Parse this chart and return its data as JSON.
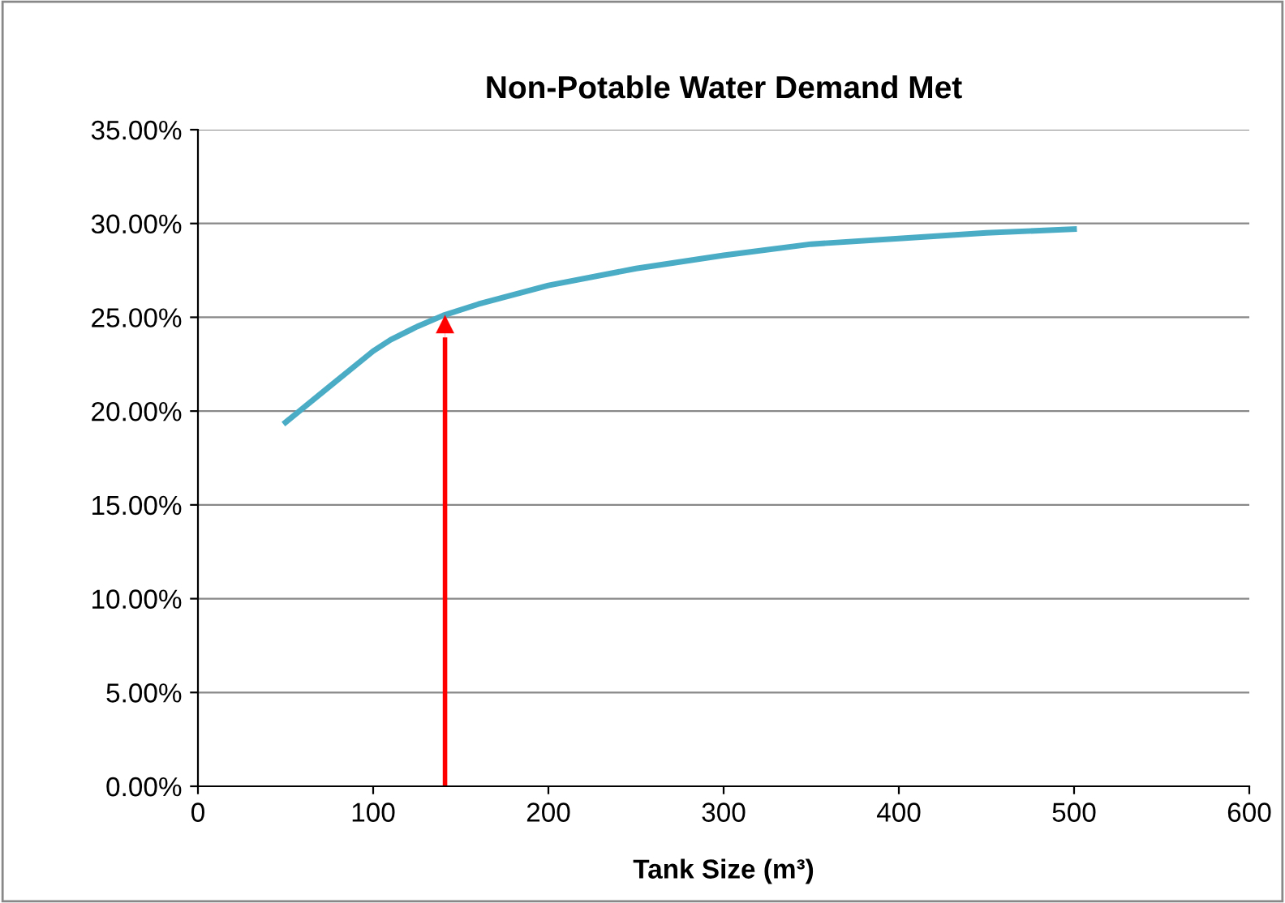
{
  "chart_data": {
    "type": "line",
    "title": "Non-Potable Water Demand Met",
    "xlabel": "Tank Size (m³)",
    "x": [
      50,
      75,
      100,
      110,
      125,
      140,
      160,
      200,
      250,
      300,
      350,
      400,
      450,
      500
    ],
    "series": [
      {
        "color": "#4bacc6",
        "values": [
          19.4,
          21.3,
          23.2,
          23.8,
          24.5,
          25.1,
          25.7,
          26.7,
          27.6,
          28.3,
          28.9,
          29.2,
          29.5,
          29.7
        ]
      }
    ],
    "xlim": [
      0,
      600
    ],
    "xticks": [
      0,
      100,
      200,
      300,
      400,
      500,
      600
    ],
    "ylim": [
      0,
      35
    ],
    "yticks": [
      {
        "value": 0,
        "label": "0.00%"
      },
      {
        "value": 5,
        "label": "5.00%"
      },
      {
        "value": 10,
        "label": "10.00%"
      },
      {
        "value": 15,
        "label": "15.00%"
      },
      {
        "value": 20,
        "label": "20.00%"
      },
      {
        "value": 25,
        "label": "25.00%"
      },
      {
        "value": 30,
        "label": "30.00%"
      },
      {
        "value": 35,
        "label": "35.00%"
      }
    ],
    "grid": "y",
    "marker": "none",
    "line_style": "solid",
    "ref_lines": [
      {
        "axis": "x",
        "value": 141,
        "color": "#ff0000"
      }
    ]
  }
}
